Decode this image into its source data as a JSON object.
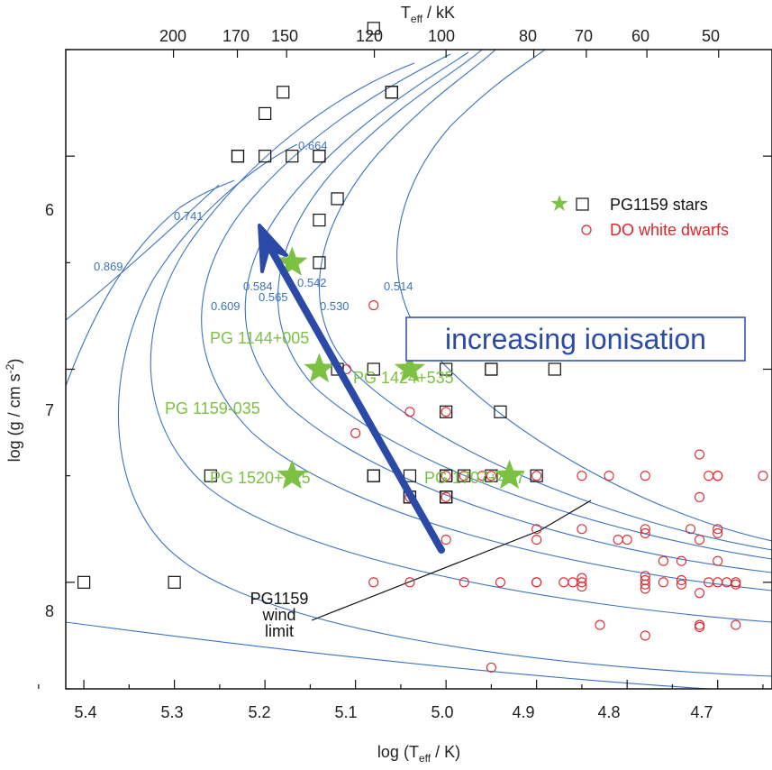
{
  "chart_data": {
    "type": "scatter",
    "x_axis": {
      "label_main": "log (T",
      "label_sub": "eff",
      "label_end": " / K)",
      "range": [
        5.42,
        4.64
      ],
      "ticks": [
        "5.4",
        "5.3",
        "5.2",
        "5.1",
        "5.0",
        "4.9",
        "4.8",
        "4.7"
      ]
    },
    "x2_axis": {
      "label_main": "T",
      "label_sub": "eff",
      "label_end": " / kK",
      "ticks": [
        "200",
        "170",
        "150",
        "120",
        "100",
        "80",
        "70",
        "60",
        "50"
      ]
    },
    "y_axis": {
      "label_main": "log (g / cm s",
      "label_sup": "-2",
      "label_end": ")",
      "range": [
        5.5,
        8.5
      ],
      "ticks": [
        "6",
        "7",
        "8"
      ]
    },
    "legend": {
      "position": "top-right",
      "pg1159": "PG1159 stars",
      "do": "DO white dwarfs"
    },
    "colors": {
      "pg1159": "#111111",
      "do": "#e0262b",
      "star": "#7dc142",
      "tracks": "#3a72c0",
      "arrow": "#2b4aa8"
    },
    "series": [
      {
        "name": "PG1159 stars",
        "marker": "square",
        "points": [
          [
            5.4,
            8.0
          ],
          [
            5.3,
            8.0
          ],
          [
            5.26,
            7.5
          ],
          [
            5.23,
            6.0
          ],
          [
            5.23,
            6.0
          ],
          [
            5.2,
            6.0
          ],
          [
            5.2,
            5.8
          ],
          [
            5.18,
            5.7
          ],
          [
            5.17,
            6.0
          ],
          [
            5.14,
            6.0
          ],
          [
            5.14,
            6.0
          ],
          [
            5.14,
            6.3
          ],
          [
            5.14,
            6.5
          ],
          [
            5.12,
            6.2
          ],
          [
            5.12,
            7.0
          ],
          [
            5.08,
            7.0
          ],
          [
            5.08,
            7.5
          ],
          [
            5.08,
            7.5
          ],
          [
            5.08,
            5.4
          ],
          [
            5.06,
            5.7
          ],
          [
            5.06,
            5.7
          ],
          [
            5.04,
            7.5
          ],
          [
            5.04,
            7.6
          ],
          [
            5.04,
            7.6
          ],
          [
            5.0,
            5.2
          ],
          [
            5.0,
            7.0
          ],
          [
            5.0,
            7.2
          ],
          [
            5.0,
            7.5
          ],
          [
            5.0,
            7.5
          ],
          [
            5.0,
            7.6
          ],
          [
            5.0,
            7.6
          ],
          [
            5.0,
            7.6
          ],
          [
            4.98,
            7.5
          ],
          [
            4.95,
            7.0
          ],
          [
            4.95,
            7.0
          ],
          [
            4.95,
            7.5
          ],
          [
            4.94,
            7.2
          ],
          [
            4.9,
            7.5
          ],
          [
            4.88,
            7.0
          ]
        ]
      },
      {
        "name": "PG1159 stars (highlighted)",
        "marker": "star",
        "points": [
          [
            5.17,
            6.5
          ],
          [
            5.14,
            7.0
          ],
          [
            5.04,
            7.0
          ],
          [
            5.17,
            7.5
          ],
          [
            4.93,
            7.5
          ]
        ]
      },
      {
        "name": "DO white dwarfs",
        "marker": "circle",
        "points": [
          [
            5.08,
            6.7
          ],
          [
            5.11,
            7.0
          ],
          [
            5.04,
            7.2
          ],
          [
            5.0,
            7.2
          ],
          [
            5.1,
            7.3
          ],
          [
            5.04,
            7.6
          ],
          [
            5.0,
            7.5
          ],
          [
            5.0,
            7.6
          ],
          [
            4.98,
            7.5
          ],
          [
            4.96,
            7.5
          ],
          [
            4.95,
            7.5
          ],
          [
            4.9,
            7.5
          ],
          [
            5.0,
            7.8
          ],
          [
            4.9,
            7.75
          ],
          [
            4.9,
            7.8
          ],
          [
            4.85,
            7.75
          ],
          [
            4.85,
            7.5
          ],
          [
            4.82,
            7.5
          ],
          [
            4.78,
            7.5
          ],
          [
            4.78,
            7.75
          ],
          [
            4.78,
            7.77
          ],
          [
            4.81,
            7.8
          ],
          [
            4.8,
            7.8
          ],
          [
            4.76,
            7.9
          ],
          [
            4.74,
            7.9
          ],
          [
            4.72,
            7.4
          ],
          [
            4.72,
            7.6
          ],
          [
            4.71,
            7.5
          ],
          [
            4.7,
            7.5
          ],
          [
            4.7,
            7.5
          ],
          [
            4.7,
            7.75
          ],
          [
            4.7,
            7.77
          ],
          [
            4.72,
            7.8
          ],
          [
            4.73,
            7.75
          ],
          [
            4.7,
            7.9
          ],
          [
            4.65,
            7.5
          ],
          [
            5.08,
            8.0
          ],
          [
            5.04,
            8.0
          ],
          [
            4.98,
            8.0
          ],
          [
            4.94,
            8.0
          ],
          [
            4.9,
            8.0
          ],
          [
            4.9,
            8.0
          ],
          [
            4.87,
            8.0
          ],
          [
            4.86,
            8.0
          ],
          [
            4.85,
            7.98
          ],
          [
            4.85,
            8.0
          ],
          [
            4.85,
            8.02
          ],
          [
            4.78,
            7.97
          ],
          [
            4.78,
            7.99
          ],
          [
            4.78,
            8.01
          ],
          [
            4.78,
            8.03
          ],
          [
            4.76,
            8.0
          ],
          [
            4.74,
            7.99
          ],
          [
            4.74,
            8.01
          ],
          [
            4.71,
            8.0
          ],
          [
            4.7,
            8.0
          ],
          [
            4.69,
            8.0
          ],
          [
            4.68,
            8.0
          ],
          [
            4.68,
            8.01
          ],
          [
            4.72,
            8.05
          ],
          [
            4.83,
            8.2
          ],
          [
            4.78,
            8.25
          ],
          [
            4.72,
            8.2
          ],
          [
            4.72,
            8.21
          ],
          [
            4.68,
            8.2
          ],
          [
            4.95,
            8.4
          ]
        ]
      }
    ],
    "star_labels": [
      "PG 1144+005",
      "PG 1159-035",
      "PG 1424+535",
      "PG 1520+525",
      "PG 1707+427"
    ],
    "track_labels": [
      "0.869",
      "0.741",
      "0.664",
      "0.609",
      "0.584",
      "0.565",
      "0.542",
      "0.530",
      "0.514"
    ],
    "annotation_ionisation": "increasing ionisation",
    "wind_limit_label": [
      "PG1159",
      "wind",
      "limit"
    ]
  }
}
